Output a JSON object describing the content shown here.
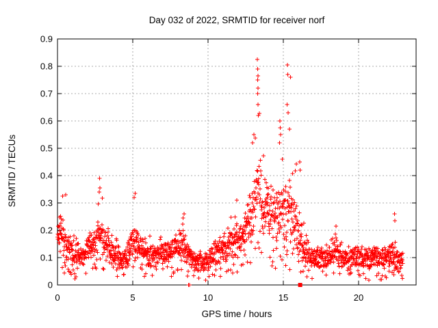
{
  "page": {
    "background_color": "#ffffff"
  },
  "chart_data": {
    "type": "scatter",
    "title": "Day 032 of 2022, SRMTID for receiver norf",
    "xlabel": "GPS time / hours",
    "ylabel": "SRMTID / TECUs",
    "xlim": [
      0,
      23.82
    ],
    "ylim": [
      0,
      0.9
    ],
    "xticks": [
      0,
      5,
      10,
      15,
      20
    ],
    "yticks": [
      0,
      0.1,
      0.2,
      0.3,
      0.4,
      0.5,
      0.6,
      0.7,
      0.8,
      0.9
    ],
    "grid": true,
    "legend": "none",
    "marker": "plus",
    "marker_color": "#ff0000",
    "grid_color": "#a8a8a8",
    "axis_color": "#000000",
    "series_name": "SRMTID",
    "seed": 987654321,
    "points_per_hour": 75,
    "data_end_hour": 22.95,
    "envelope_profile": [
      [
        0.0,
        0.1,
        0.18,
        0.33
      ],
      [
        0.3,
        0.1,
        0.19,
        0.33
      ],
      [
        0.6,
        0.08,
        0.15,
        0.33
      ],
      [
        1.0,
        0.05,
        0.11,
        0.19
      ],
      [
        1.5,
        0.05,
        0.1,
        0.17
      ],
      [
        2.0,
        0.07,
        0.12,
        0.2
      ],
      [
        2.4,
        0.09,
        0.15,
        0.26
      ],
      [
        2.8,
        0.1,
        0.19,
        0.39
      ],
      [
        3.1,
        0.1,
        0.17,
        0.33
      ],
      [
        3.5,
        0.07,
        0.13,
        0.22
      ],
      [
        4.0,
        0.04,
        0.1,
        0.16
      ],
      [
        4.4,
        0.04,
        0.09,
        0.15
      ],
      [
        4.8,
        0.07,
        0.13,
        0.22
      ],
      [
        5.1,
        0.09,
        0.16,
        0.335
      ],
      [
        5.4,
        0.08,
        0.14,
        0.25
      ],
      [
        5.8,
        0.06,
        0.11,
        0.18
      ],
      [
        6.3,
        0.06,
        0.11,
        0.18
      ],
      [
        6.8,
        0.06,
        0.12,
        0.2
      ],
      [
        7.3,
        0.06,
        0.12,
        0.19
      ],
      [
        7.8,
        0.07,
        0.13,
        0.2
      ],
      [
        8.3,
        0.08,
        0.15,
        0.26
      ],
      [
        8.7,
        0.06,
        0.11,
        0.18
      ],
      [
        9.1,
        0.04,
        0.09,
        0.14
      ],
      [
        9.6,
        0.03,
        0.08,
        0.13
      ],
      [
        10.1,
        0.04,
        0.09,
        0.15
      ],
      [
        10.5,
        0.06,
        0.12,
        0.2
      ],
      [
        11.0,
        0.07,
        0.13,
        0.22
      ],
      [
        11.5,
        0.08,
        0.15,
        0.26
      ],
      [
        11.9,
        0.09,
        0.17,
        0.31
      ],
      [
        12.2,
        0.1,
        0.17,
        0.28
      ],
      [
        12.5,
        0.12,
        0.2,
        0.42
      ],
      [
        12.8,
        0.14,
        0.24,
        0.55
      ],
      [
        13.1,
        0.16,
        0.3,
        0.72
      ],
      [
        13.35,
        0.18,
        0.34,
        0.83
      ],
      [
        13.6,
        0.16,
        0.3,
        0.57
      ],
      [
        13.9,
        0.15,
        0.28,
        0.5
      ],
      [
        14.2,
        0.13,
        0.25,
        0.44
      ],
      [
        14.5,
        0.13,
        0.26,
        0.55
      ],
      [
        14.8,
        0.15,
        0.28,
        0.62
      ],
      [
        15.1,
        0.15,
        0.29,
        0.7
      ],
      [
        15.35,
        0.14,
        0.28,
        0.81
      ],
      [
        15.6,
        0.12,
        0.24,
        0.55
      ],
      [
        15.9,
        0.1,
        0.2,
        0.45
      ],
      [
        16.15,
        0.08,
        0.16,
        0.34
      ],
      [
        16.5,
        0.06,
        0.12,
        0.22
      ],
      [
        17.0,
        0.05,
        0.1,
        0.16
      ],
      [
        17.5,
        0.05,
        0.1,
        0.16
      ],
      [
        18.0,
        0.06,
        0.1,
        0.17
      ],
      [
        18.5,
        0.07,
        0.13,
        0.215
      ],
      [
        18.9,
        0.05,
        0.1,
        0.16
      ],
      [
        19.3,
        0.04,
        0.08,
        0.14
      ],
      [
        19.8,
        0.06,
        0.11,
        0.18
      ],
      [
        20.2,
        0.05,
        0.1,
        0.16
      ],
      [
        20.6,
        0.04,
        0.09,
        0.15
      ],
      [
        21.0,
        0.05,
        0.1,
        0.16
      ],
      [
        21.5,
        0.05,
        0.1,
        0.15
      ],
      [
        22.0,
        0.05,
        0.1,
        0.16
      ],
      [
        22.4,
        0.06,
        0.12,
        0.26
      ],
      [
        22.7,
        0.04,
        0.08,
        0.13
      ],
      [
        22.95,
        0.04,
        0.08,
        0.12
      ]
    ],
    "peak_points": [
      [
        13.28,
        0.825
      ],
      [
        13.3,
        0.79
      ],
      [
        13.32,
        0.765
      ],
      [
        13.3,
        0.75
      ],
      [
        13.33,
        0.72
      ],
      [
        13.29,
        0.7
      ],
      [
        13.31,
        0.66
      ],
      [
        13.34,
        0.62
      ],
      [
        13.05,
        0.55
      ],
      [
        12.95,
        0.52
      ],
      [
        14.78,
        0.6
      ],
      [
        14.8,
        0.575
      ],
      [
        14.83,
        0.55
      ],
      [
        14.76,
        0.52
      ],
      [
        15.28,
        0.805
      ],
      [
        15.3,
        0.77
      ],
      [
        15.48,
        0.76
      ],
      [
        15.25,
        0.66
      ],
      [
        15.32,
        0.63
      ],
      [
        15.4,
        0.57
      ],
      [
        2.8,
        0.39
      ],
      [
        2.82,
        0.355
      ],
      [
        2.78,
        0.34
      ],
      [
        0.55,
        0.33
      ],
      [
        0.35,
        0.325
      ],
      [
        5.15,
        0.335
      ],
      [
        5.1,
        0.32
      ],
      [
        11.9,
        0.31
      ],
      [
        16.1,
        0.45
      ],
      [
        16.12,
        0.42
      ],
      [
        22.38,
        0.26
      ],
      [
        22.4,
        0.235
      ],
      [
        18.5,
        0.215
      ],
      [
        8.4,
        0.26
      ],
      [
        8.35,
        0.245
      ]
    ],
    "zero_points": [
      [
        8.7,
        0.0
      ],
      [
        8.78,
        0.0
      ]
    ],
    "zero_cluster": {
      "hour": 16.12,
      "value": 0.0
    }
  }
}
